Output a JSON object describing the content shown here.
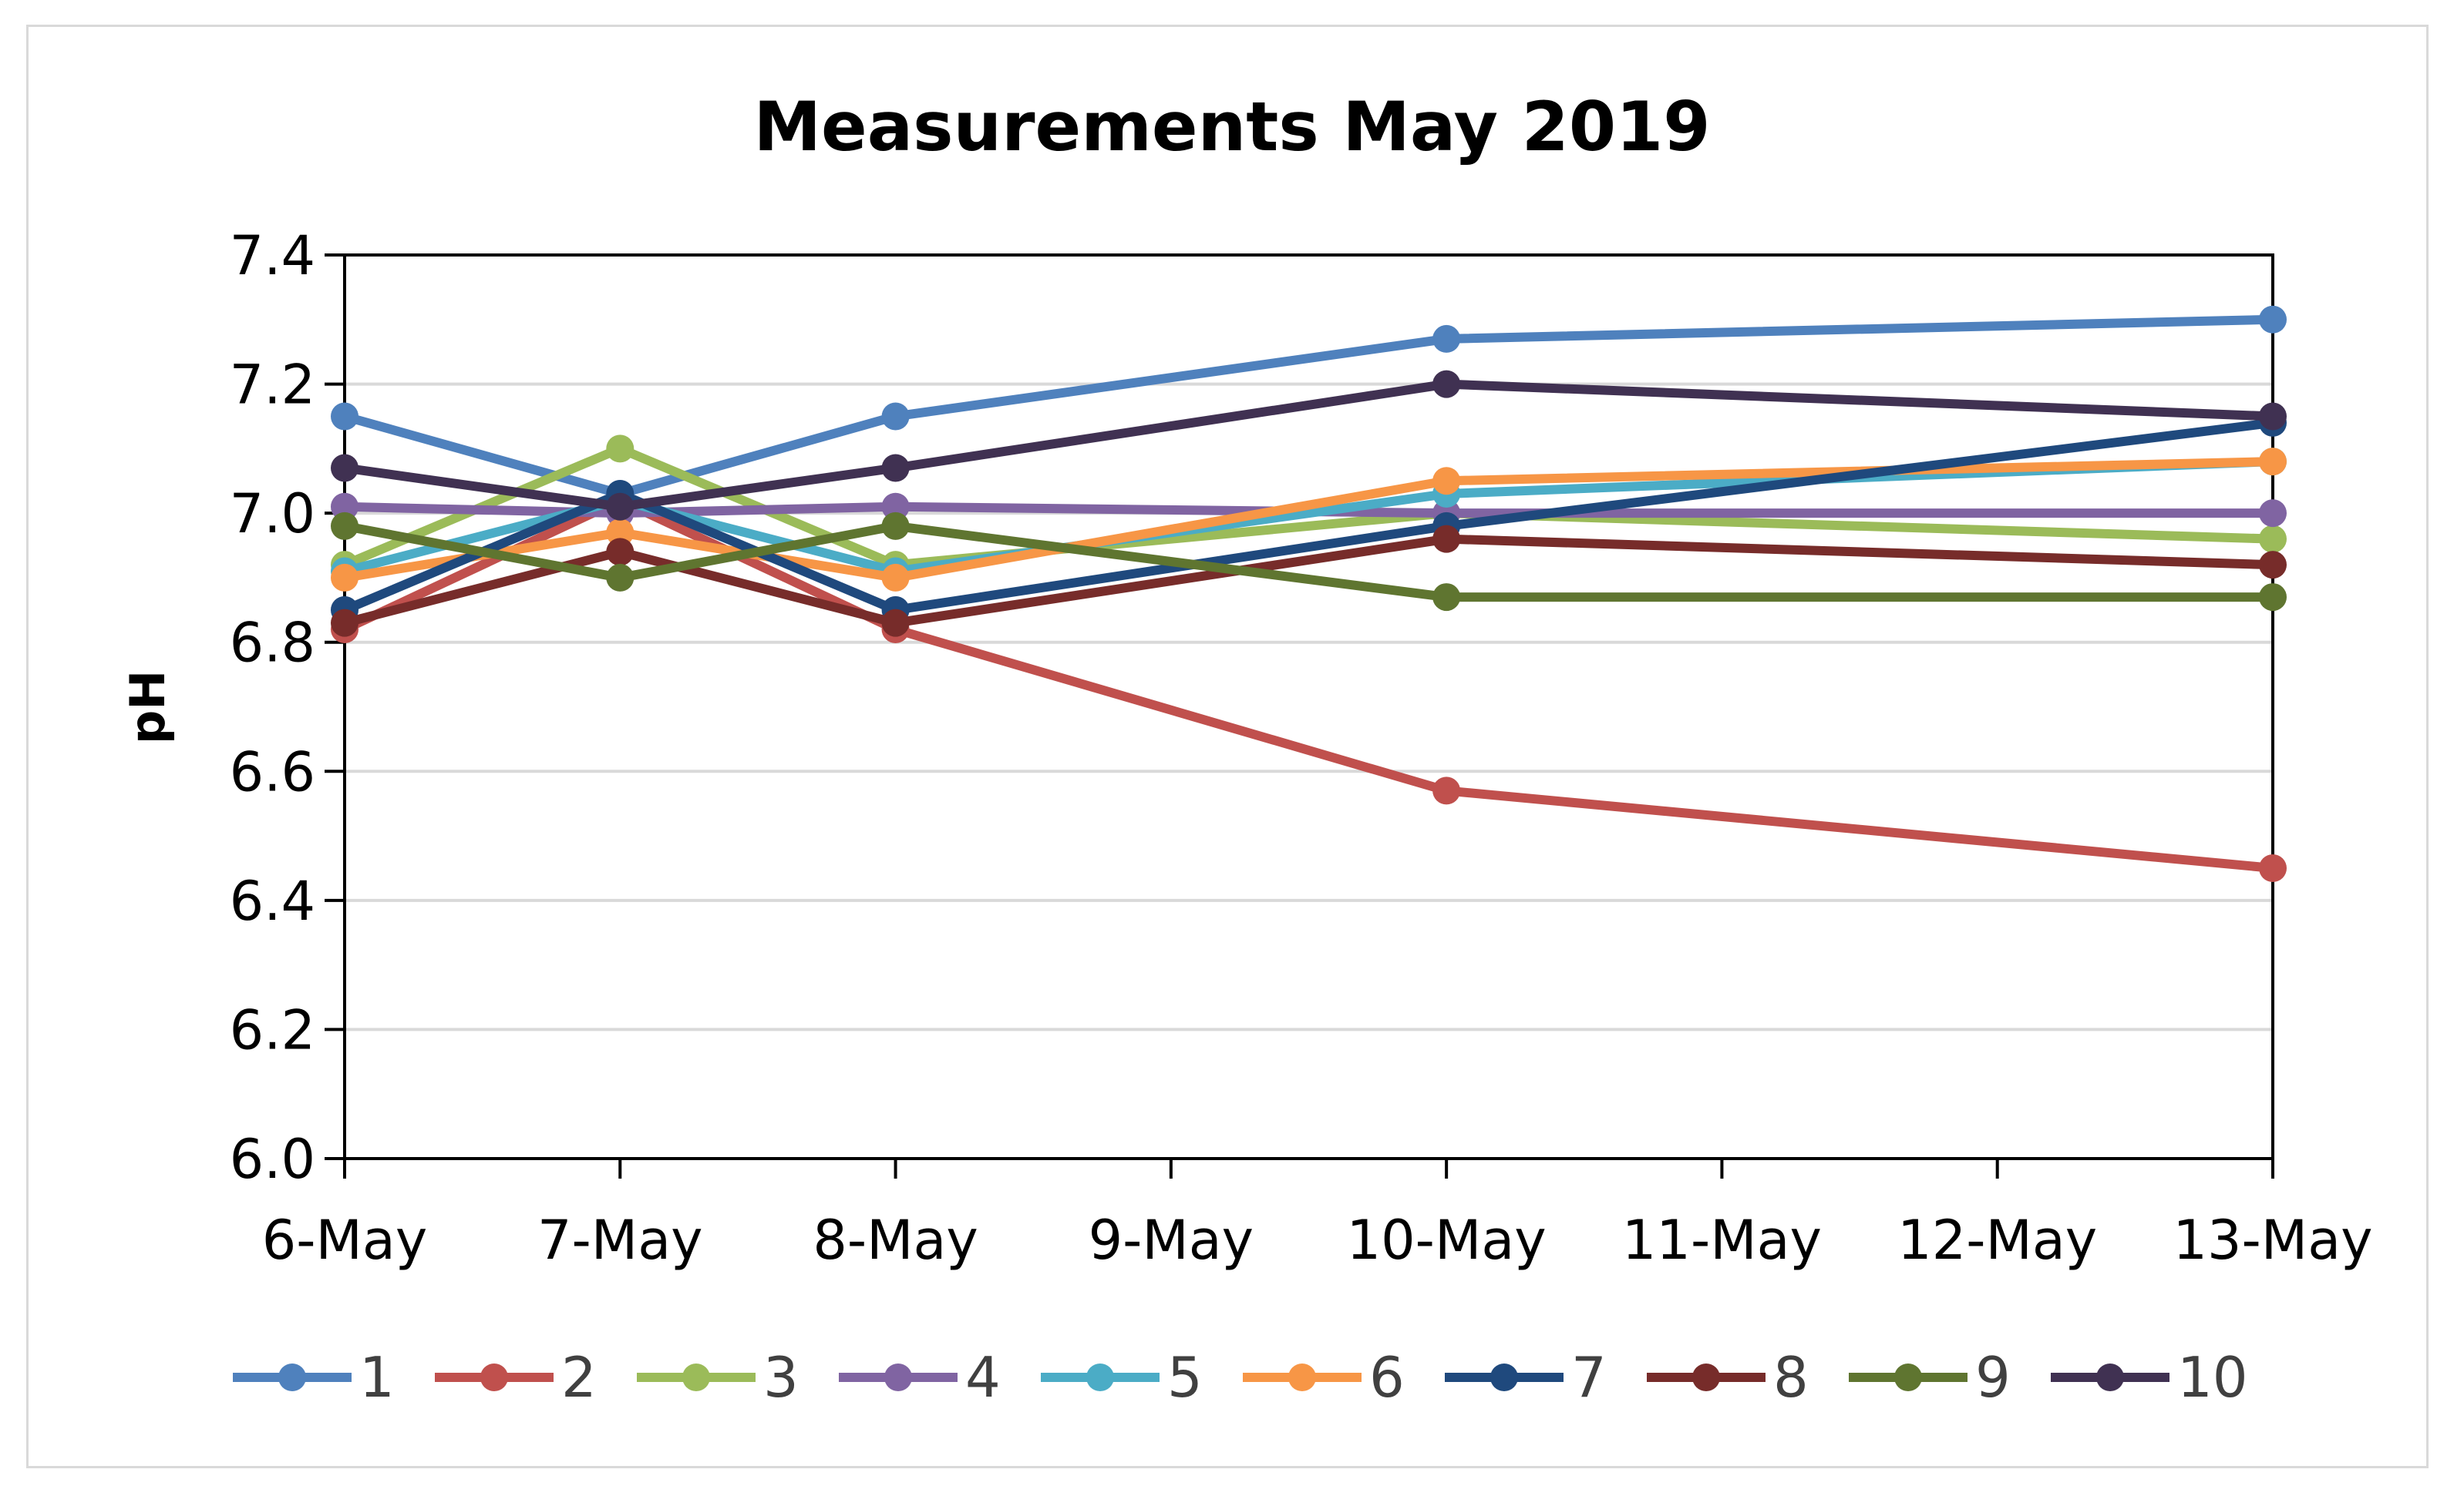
{
  "chart_data": {
    "type": "line",
    "title": "Measurements May 2019",
    "xlabel": "",
    "ylabel": "pH",
    "ylim": [
      6.0,
      7.4
    ],
    "yticks": [
      6.0,
      6.2,
      6.4,
      6.6,
      6.8,
      7.0,
      7.2,
      7.4
    ],
    "ytick_labels": [
      "6.0",
      "6.2",
      "6.4",
      "6.6",
      "6.8",
      "7.0",
      "7.2",
      "7.4"
    ],
    "categories": [
      "6-May",
      "7-May",
      "8-May",
      "9-May",
      "10-May",
      "11-May",
      "12-May",
      "13-May"
    ],
    "grid": true,
    "legend_position": "bottom",
    "series": [
      {
        "name": "1",
        "color": "#4F81BD",
        "values": [
          7.15,
          7.03,
          7.15,
          null,
          7.27,
          null,
          null,
          7.3
        ]
      },
      {
        "name": "2",
        "color": "#C0504D",
        "values": [
          6.82,
          7.02,
          6.82,
          null,
          6.57,
          null,
          null,
          6.45
        ]
      },
      {
        "name": "3",
        "color": "#9BBB59",
        "values": [
          6.92,
          7.1,
          6.92,
          null,
          7.0,
          null,
          null,
          6.96
        ]
      },
      {
        "name": "4",
        "color": "#8064A2",
        "values": [
          7.01,
          7.0,
          7.01,
          null,
          7.0,
          null,
          null,
          7.0
        ]
      },
      {
        "name": "5",
        "color": "#4BACC6",
        "values": [
          6.91,
          7.02,
          6.91,
          null,
          7.03,
          null,
          null,
          7.08
        ]
      },
      {
        "name": "6",
        "color": "#F79646",
        "values": [
          6.9,
          6.97,
          6.9,
          null,
          7.05,
          null,
          null,
          7.08
        ]
      },
      {
        "name": "7",
        "color": "#1F497D",
        "values": [
          6.85,
          7.03,
          6.85,
          null,
          6.98,
          null,
          null,
          7.14
        ]
      },
      {
        "name": "8",
        "color": "#772C2A",
        "values": [
          6.83,
          6.94,
          6.83,
          null,
          6.96,
          null,
          null,
          6.92
        ]
      },
      {
        "name": "9",
        "color": "#5F7530",
        "values": [
          6.98,
          6.9,
          6.98,
          null,
          6.87,
          null,
          null,
          6.87
        ]
      },
      {
        "name": "10",
        "color": "#403152",
        "values": [
          7.07,
          7.01,
          7.07,
          null,
          7.2,
          null,
          null,
          7.15
        ]
      }
    ]
  }
}
